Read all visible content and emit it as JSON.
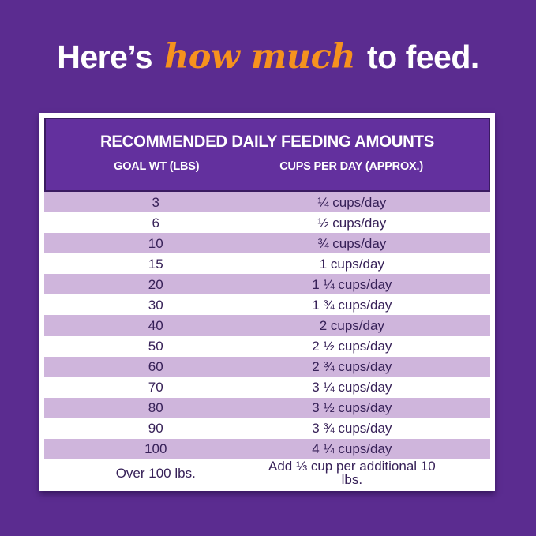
{
  "page": {
    "background_color": "#5b2c90",
    "heading": {
      "prefix": "Here’s ",
      "highlight": "how much",
      "suffix": " to feed.",
      "text_color": "#ffffff",
      "highlight_color": "#f6921e"
    }
  },
  "table": {
    "title": "RECOMMENDED DAILY FEEDING AMOUNTS",
    "columns": [
      "GOAL WT (LBS)",
      "CUPS PER DAY (APPROX.)"
    ],
    "header_bg": "#63309e",
    "header_border": "#3a1b61",
    "header_text_color": "#ffffff",
    "row_shade_color": "#cfb5dc",
    "row_text_color": "#372158",
    "rows": [
      {
        "goal_wt": "3",
        "cups": "¼ cups/day"
      },
      {
        "goal_wt": "6",
        "cups": "½ cups/day"
      },
      {
        "goal_wt": "10",
        "cups": "¾ cups/day"
      },
      {
        "goal_wt": "15",
        "cups": "1 cups/day"
      },
      {
        "goal_wt": "20",
        "cups": "1 ¼ cups/day"
      },
      {
        "goal_wt": "30",
        "cups": "1 ¾ cups/day"
      },
      {
        "goal_wt": "40",
        "cups": "2 cups/day"
      },
      {
        "goal_wt": "50",
        "cups": "2 ½ cups/day"
      },
      {
        "goal_wt": "60",
        "cups": "2 ¾ cups/day"
      },
      {
        "goal_wt": "70",
        "cups": "3 ¼ cups/day"
      },
      {
        "goal_wt": "80",
        "cups": "3 ½ cups/day"
      },
      {
        "goal_wt": "90",
        "cups": "3 ¾ cups/day"
      },
      {
        "goal_wt": "100",
        "cups": "4 ¼ cups/day"
      },
      {
        "goal_wt": "Over 100 lbs.",
        "cups": "Add ⅓ cup per additional 10 lbs."
      }
    ]
  },
  "chart_data": {
    "type": "table",
    "title": "RECOMMENDED DAILY FEEDING AMOUNTS",
    "columns": [
      "GOAL WT (LBS)",
      "CUPS PER DAY (APPROX.)"
    ],
    "goal_weights_lbs": [
      3,
      6,
      10,
      15,
      20,
      30,
      40,
      50,
      60,
      70,
      80,
      90,
      100
    ],
    "cups_per_day": [
      0.25,
      0.5,
      0.75,
      1,
      1.25,
      1.75,
      2,
      2.5,
      2.75,
      3.25,
      3.5,
      3.75,
      4.25
    ],
    "over_limit_rule": {
      "label": "Over 100 lbs.",
      "value": "Add ⅓ cup per additional 10 lbs."
    },
    "layout": {
      "shaded_rows": "odd data rows (1st, 3rd, ...)",
      "shade_color": "#cfb5dc"
    }
  }
}
